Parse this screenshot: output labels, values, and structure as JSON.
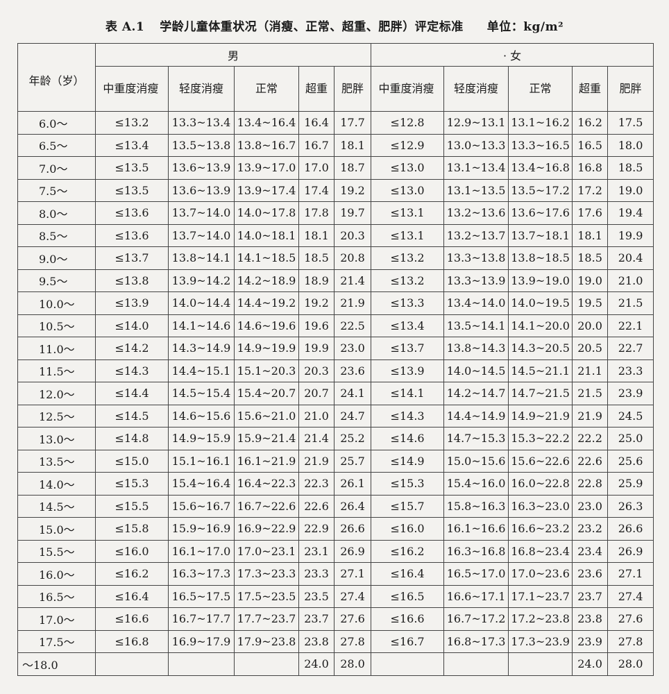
{
  "caption": {
    "label": "表 A.1",
    "title": "学龄儿童体重状况（消瘦、正常、超重、肥胖）评定标准",
    "unit": "单位：kg/m²"
  },
  "headers": {
    "age": "年龄（岁）",
    "male": "男",
    "female": "· 女",
    "cols": [
      "中重度消瘦",
      "轻度消瘦",
      "正常",
      "超重",
      "肥胖"
    ]
  },
  "rows": [
    {
      "age": "6.0～",
      "m": [
        "≤13.2",
        "13.3~13.4",
        "13.4~16.4",
        "16.4",
        "17.7"
      ],
      "f": [
        "≤12.8",
        "12.9~13.1",
        "13.1~16.2",
        "16.2",
        "17.5"
      ]
    },
    {
      "age": "6.5～",
      "m": [
        "≤13.4",
        "13.5~13.8",
        "13.8~16.7",
        "16.7",
        "18.1"
      ],
      "f": [
        "≤12.9",
        "13.0~13.3",
        "13.3~16.5",
        "16.5",
        "18.0"
      ]
    },
    {
      "age": "7.0～",
      "m": [
        "≤13.5",
        "13.6~13.9",
        "13.9~17.0",
        "17.0",
        "18.7"
      ],
      "f": [
        "≤13.0",
        "13.1~13.4",
        "13.4~16.8",
        "16.8",
        "18.5"
      ]
    },
    {
      "age": "7.5～",
      "m": [
        "≤13.5",
        "13.6~13.9",
        "13.9~17.4",
        "17.4",
        "19.2"
      ],
      "f": [
        "≤13.0",
        "13.1~13.5",
        "13.5~17.2",
        "17.2",
        "19.0"
      ]
    },
    {
      "age": "8.0～",
      "m": [
        "≤13.6",
        "13.7~14.0",
        "14.0~17.8",
        "17.8",
        "19.7"
      ],
      "f": [
        "≤13.1",
        "13.2~13.6",
        "13.6~17.6",
        "17.6",
        "19.4"
      ]
    },
    {
      "age": "8.5～",
      "m": [
        "≤13.6",
        "13.7~14.0",
        "14.0~18.1",
        "18.1",
        "20.3"
      ],
      "f": [
        "≤13.1",
        "13.2~13.7",
        "13.7~18.1",
        "18.1",
        "19.9"
      ]
    },
    {
      "age": "9.0～",
      "m": [
        "≤13.7",
        "13.8~14.1",
        "14.1~18.5",
        "18.5",
        "20.8"
      ],
      "f": [
        "≤13.2",
        "13.3~13.8",
        "13.8~18.5",
        "18.5",
        "20.4"
      ]
    },
    {
      "age": "9.5～",
      "m": [
        "≤13.8",
        "13.9~14.2",
        "14.2~18.9",
        "18.9",
        "21.4"
      ],
      "f": [
        "≤13.2",
        "13.3~13.9",
        "13.9~19.0",
        "19.0",
        "21.0"
      ]
    },
    {
      "age": "10.0～",
      "m": [
        "≤13.9",
        "14.0~14.4",
        "14.4~19.2",
        "19.2",
        "21.9"
      ],
      "f": [
        "≤13.3",
        "13.4~14.0",
        "14.0~19.5",
        "19.5",
        "21.5"
      ]
    },
    {
      "age": "10.5～",
      "m": [
        "≤14.0",
        "14.1~14.6",
        "14.6~19.6",
        "19.6",
        "22.5"
      ],
      "f": [
        "≤13.4",
        "13.5~14.1",
        "14.1~20.0",
        "20.0",
        "22.1"
      ]
    },
    {
      "age": "11.0～",
      "m": [
        "≤14.2",
        "14.3~14.9",
        "14.9~19.9",
        "19.9",
        "23.0"
      ],
      "f": [
        "≤13.7",
        "13.8~14.3",
        "14.3~20.5",
        "20.5",
        "22.7"
      ]
    },
    {
      "age": "11.5～",
      "m": [
        "≤14.3",
        "14.4~15.1",
        "15.1~20.3",
        "20.3",
        "23.6"
      ],
      "f": [
        "≤13.9",
        "14.0~14.5",
        "14.5~21.1",
        "21.1",
        "23.3"
      ]
    },
    {
      "age": "12.0～",
      "m": [
        "≤14.4",
        "14.5~15.4",
        "15.4~20.7",
        "20.7",
        "24.1"
      ],
      "f": [
        "≤14.1",
        "14.2~14.7",
        "14.7~21.5",
        "21.5",
        "23.9"
      ]
    },
    {
      "age": "12.5～",
      "m": [
        "≤14.5",
        "14.6~15.6",
        "15.6~21.0",
        "21.0",
        "24.7"
      ],
      "f": [
        "≤14.3",
        "14.4~14.9",
        "14.9~21.9",
        "21.9",
        "24.5"
      ]
    },
    {
      "age": "13.0～",
      "m": [
        "≤14.8",
        "14.9~15.9",
        "15.9~21.4",
        "21.4",
        "25.2"
      ],
      "f": [
        "≤14.6",
        "14.7~15.3",
        "15.3~22.2",
        "22.2",
        "25.0"
      ]
    },
    {
      "age": "13.5～",
      "m": [
        "≤15.0",
        "15.1~16.1",
        "16.1~21.9",
        "21.9",
        "25.7"
      ],
      "f": [
        "≤14.9",
        "15.0~15.6",
        "15.6~22.6",
        "22.6",
        "25.6"
      ]
    },
    {
      "age": "14.0～",
      "m": [
        "≤15.3",
        "15.4~16.4",
        "16.4~22.3",
        "22.3",
        "26.1"
      ],
      "f": [
        "≤15.3",
        "15.4~16.0",
        "16.0~22.8",
        "22.8",
        "25.9"
      ]
    },
    {
      "age": "14.5～",
      "m": [
        "≤15.5",
        "15.6~16.7",
        "16.7~22.6",
        "22.6",
        "26.4"
      ],
      "f": [
        "≤15.7",
        "15.8~16.3",
        "16.3~23.0",
        "23.0",
        "26.3"
      ]
    },
    {
      "age": "15.0～",
      "m": [
        "≤15.8",
        "15.9~16.9",
        "16.9~22.9",
        "22.9",
        "26.6"
      ],
      "f": [
        "≤16.0",
        "16.1~16.6",
        "16.6~23.2",
        "23.2",
        "26.6"
      ]
    },
    {
      "age": "15.5～",
      "m": [
        "≤16.0",
        "16.1~17.0",
        "17.0~23.1",
        "23.1",
        "26.9"
      ],
      "f": [
        "≤16.2",
        "16.3~16.8",
        "16.8~23.4",
        "23.4",
        "26.9"
      ]
    },
    {
      "age": "16.0～",
      "m": [
        "≤16.2",
        "16.3~17.3",
        "17.3~23.3",
        "23.3",
        "27.1"
      ],
      "f": [
        "≤16.4",
        "16.5~17.0",
        "17.0~23.6",
        "23.6",
        "27.1"
      ]
    },
    {
      "age": "16.5～",
      "m": [
        "≤16.4",
        "16.5~17.5",
        "17.5~23.5",
        "23.5",
        "27.4"
      ],
      "f": [
        "≤16.5",
        "16.6~17.1",
        "17.1~23.7",
        "23.7",
        "27.4"
      ]
    },
    {
      "age": "17.0～",
      "m": [
        "≤16.6",
        "16.7~17.7",
        "17.7~23.7",
        "23.7",
        "27.6"
      ],
      "f": [
        "≤16.6",
        "16.7~17.2",
        "17.2~23.8",
        "23.8",
        "27.6"
      ]
    },
    {
      "age": "17.5～",
      "m": [
        "≤16.8",
        "16.9~17.9",
        "17.9~23.8",
        "23.8",
        "27.8"
      ],
      "f": [
        "≤16.7",
        "16.8~17.3",
        "17.3~23.9",
        "23.9",
        "27.8"
      ]
    },
    {
      "age": "～18.0",
      "m": [
        "",
        "",
        "",
        "24.0",
        "28.0"
      ],
      "f": [
        "",
        "",
        "",
        "24.0",
        "28.0"
      ]
    }
  ]
}
